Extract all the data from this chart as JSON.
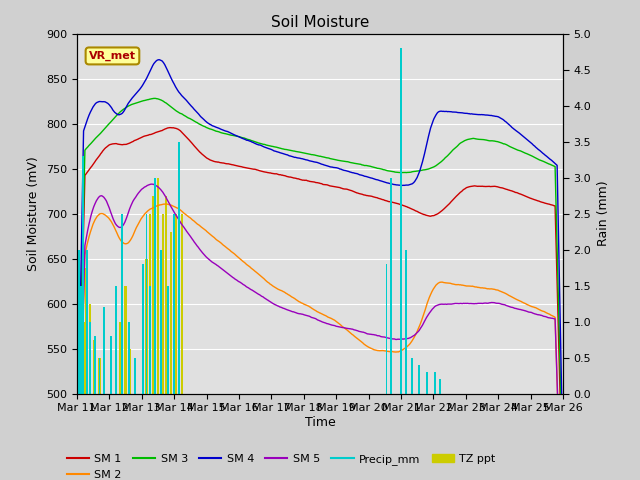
{
  "title": "Soil Moisture",
  "xlabel": "Time",
  "ylabel_left": "Soil Moisture (mV)",
  "ylabel_right": "Rain (mm)",
  "ylim_left": [
    500,
    900
  ],
  "ylim_right": [
    0.0,
    5.0
  ],
  "figsize": [
    6.4,
    4.8
  ],
  "dpi": 100,
  "bg_color": "#d0d0d0",
  "plot_bg_color": "#e0e0e0",
  "annotation_text": "VR_met",
  "annotation_bg": "#ffff99",
  "annotation_border": "#aa8800",
  "annotation_text_color": "#aa0000",
  "line_colors": {
    "SM1": "#cc0000",
    "SM2": "#ff8800",
    "SM3": "#00bb00",
    "SM4": "#0000cc",
    "SM5": "#9900bb",
    "Precip": "#00cccc",
    "TZ": "#cccc00"
  },
  "xtick_labels": [
    "Mar 11",
    "Mar 12",
    "Mar 13",
    "Mar 14",
    "Mar 15",
    "Mar 16",
    "Mar 17",
    "Mar 18",
    "Mar 19",
    "Mar 20",
    "Mar 21",
    "Mar 22",
    "Mar 23",
    "Mar 24",
    "Mar 25",
    "Mar 26"
  ],
  "yticks_left": [
    500,
    550,
    600,
    650,
    700,
    750,
    800,
    850,
    900
  ],
  "yticks_right": [
    0.0,
    0.5,
    1.0,
    1.5,
    2.0,
    2.5,
    3.0,
    3.5,
    4.0,
    4.5,
    5.0
  ],
  "n_days": 15
}
